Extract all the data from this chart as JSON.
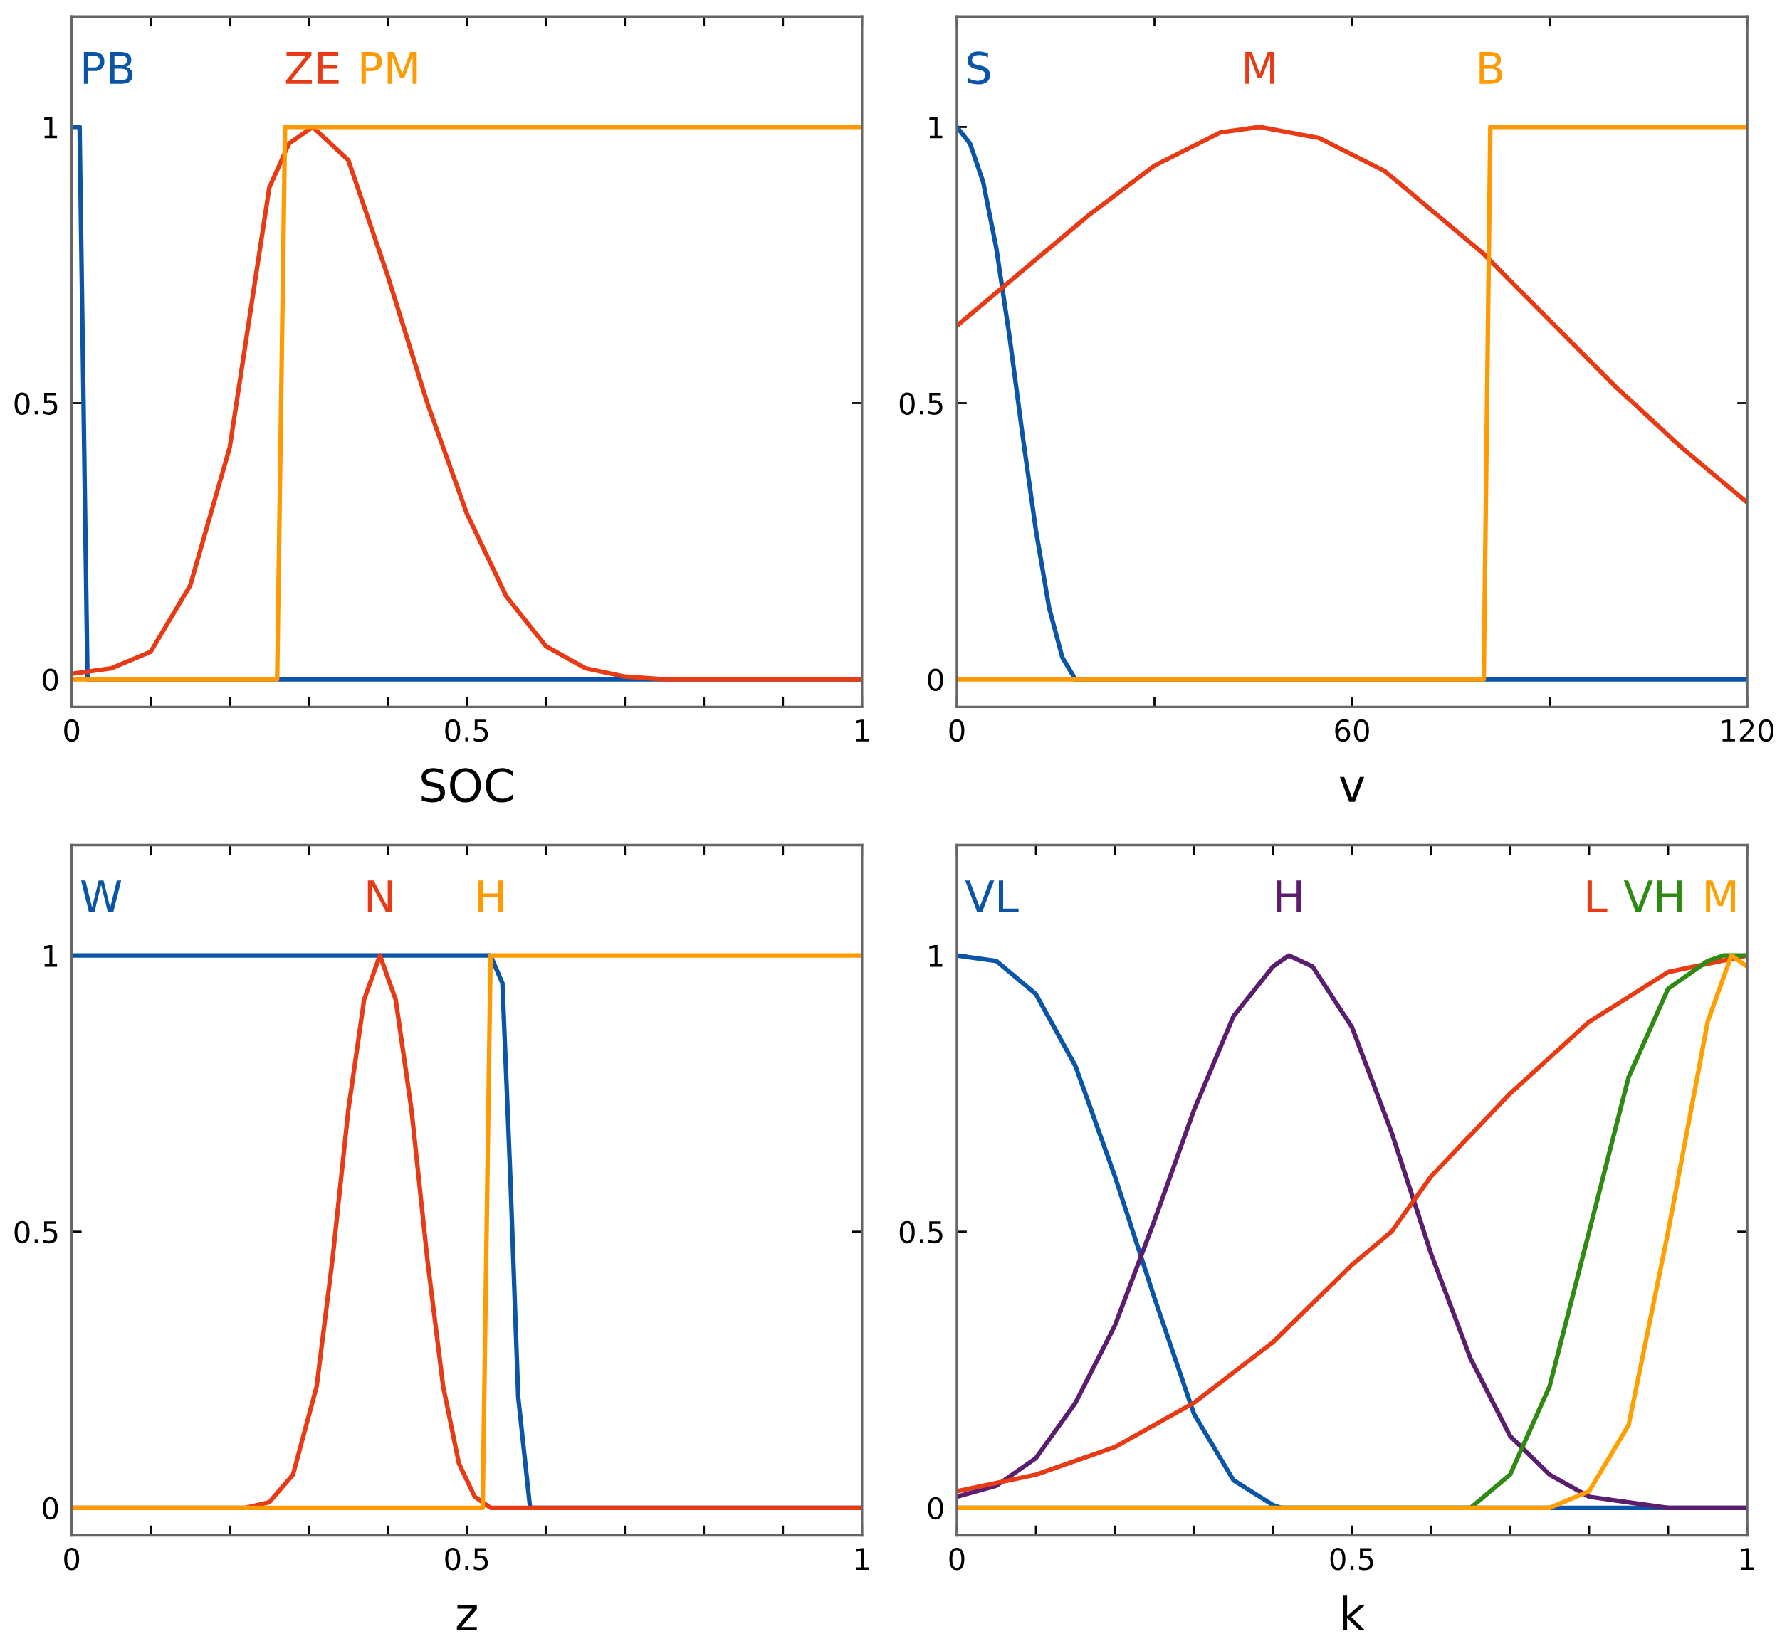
{
  "chart_data": [
    {
      "type": "line",
      "xlabel": "SOC",
      "xlim": [
        0,
        1
      ],
      "ylim": [
        -0.05,
        1.2
      ],
      "xticks": [
        0,
        {
          "value": 0.1,
          "label": null
        },
        {
          "value": 0.2,
          "label": null
        },
        {
          "value": 0.3,
          "label": null
        },
        {
          "value": 0.4,
          "label": null
        },
        0.5,
        {
          "value": 0.6,
          "label": null
        },
        {
          "value": 0.7,
          "label": null
        },
        {
          "value": 0.8,
          "label": null
        },
        {
          "value": 0.9,
          "label": null
        },
        1
      ],
      "yticks": [
        0,
        0.5,
        1
      ],
      "series": [
        {
          "name": "PB",
          "color": "#0a55a8",
          "x": [
            0,
            0.01,
            0.02,
            1
          ],
          "values": [
            1,
            1,
            0,
            0
          ]
        },
        {
          "name": "ZE",
          "color": "#e83a14",
          "x": [
            0,
            0.05,
            0.1,
            0.15,
            0.2,
            0.25,
            0.275,
            0.305,
            0.35,
            0.4,
            0.45,
            0.5,
            0.55,
            0.6,
            0.65,
            0.7,
            0.75,
            1
          ],
          "values": [
            0.01,
            0.02,
            0.05,
            0.17,
            0.42,
            0.89,
            0.97,
            1,
            0.94,
            0.73,
            0.5,
            0.3,
            0.15,
            0.06,
            0.02,
            0.005,
            0,
            0
          ]
        },
        {
          "name": "PM",
          "color": "#ff9a00",
          "x": [
            0,
            0.26,
            0.27,
            1
          ],
          "values": [
            0,
            0,
            1,
            1
          ]
        }
      ]
    },
    {
      "type": "line",
      "xlabel": "v",
      "xlim": [
        0,
        120
      ],
      "ylim": [
        -0.05,
        1.2
      ],
      "xticks": [
        0,
        {
          "value": 30,
          "label": null
        },
        60,
        {
          "value": 90,
          "label": null
        },
        120
      ],
      "yticks": [
        0,
        0.5,
        1
      ],
      "series": [
        {
          "name": "S",
          "color": "#0a55a8",
          "x": [
            0,
            2,
            4,
            6,
            8,
            10,
            12,
            14,
            16,
            18,
            120
          ],
          "values": [
            1,
            0.97,
            0.9,
            0.78,
            0.62,
            0.44,
            0.27,
            0.13,
            0.04,
            0,
            0
          ]
        },
        {
          "name": "M",
          "color": "#e83a14",
          "x": [
            0,
            10,
            20,
            30,
            40,
            46,
            55,
            65,
            75,
            80,
            90,
            100,
            110,
            120
          ],
          "values": [
            0.64,
            0.74,
            0.84,
            0.93,
            0.99,
            1,
            0.98,
            0.92,
            0.82,
            0.77,
            0.65,
            0.53,
            0.42,
            0.32
          ]
        },
        {
          "name": "B",
          "color": "#ff9a00",
          "x": [
            0,
            80,
            81,
            120
          ],
          "values": [
            0,
            0,
            1,
            1
          ]
        }
      ]
    },
    {
      "type": "line",
      "xlabel": "z",
      "xlim": [
        0,
        1
      ],
      "ylim": [
        -0.05,
        1.2
      ],
      "xticks": [
        0,
        {
          "value": 0.1,
          "label": null
        },
        {
          "value": 0.2,
          "label": null
        },
        {
          "value": 0.3,
          "label": null
        },
        {
          "value": 0.4,
          "label": null
        },
        0.5,
        {
          "value": 0.6,
          "label": null
        },
        {
          "value": 0.7,
          "label": null
        },
        {
          "value": 0.8,
          "label": null
        },
        {
          "value": 0.9,
          "label": null
        },
        1
      ],
      "yticks": [
        0,
        0.5,
        1
      ],
      "series": [
        {
          "name": "W",
          "color": "#0a55a8",
          "x": [
            0,
            0.53,
            0.545,
            0.555,
            0.565,
            0.58,
            1
          ],
          "values": [
            1,
            1,
            0.95,
            0.6,
            0.2,
            0,
            0
          ]
        },
        {
          "name": "N",
          "color": "#e83a14",
          "x": [
            0,
            0.22,
            0.25,
            0.28,
            0.31,
            0.33,
            0.35,
            0.37,
            0.39,
            0.41,
            0.43,
            0.45,
            0.47,
            0.49,
            0.51,
            0.53,
            1
          ],
          "values": [
            0,
            0,
            0.01,
            0.06,
            0.22,
            0.45,
            0.72,
            0.92,
            1,
            0.92,
            0.72,
            0.45,
            0.22,
            0.08,
            0.02,
            0,
            0
          ]
        },
        {
          "name": "H",
          "color": "#ff9a00",
          "x": [
            0,
            0.52,
            0.53,
            1
          ],
          "values": [
            0,
            0,
            1,
            1
          ]
        }
      ]
    },
    {
      "type": "line",
      "xlabel": "k",
      "xlim": [
        0,
        1
      ],
      "ylim": [
        -0.05,
        1.2
      ],
      "xticks": [
        0,
        {
          "value": 0.1,
          "label": null
        },
        {
          "value": 0.2,
          "label": null
        },
        {
          "value": 0.3,
          "label": null
        },
        {
          "value": 0.4,
          "label": null
        },
        0.5,
        {
          "value": 0.6,
          "label": null
        },
        {
          "value": 0.7,
          "label": null
        },
        {
          "value": 0.8,
          "label": null
        },
        {
          "value": 0.9,
          "label": null
        },
        1
      ],
      "yticks": [
        0,
        0.5,
        1
      ],
      "series": [
        {
          "name": "VL",
          "color": "#0a55a8",
          "x": [
            0,
            0.05,
            0.1,
            0.15,
            0.2,
            0.25,
            0.3,
            0.35,
            0.4,
            0.41,
            1
          ],
          "values": [
            1,
            0.99,
            0.93,
            0.8,
            0.6,
            0.38,
            0.17,
            0.05,
            0.005,
            0,
            0
          ]
        },
        {
          "name": "H",
          "color": "#5b1e6e",
          "x": [
            0,
            0.05,
            0.1,
            0.15,
            0.2,
            0.25,
            0.3,
            0.35,
            0.4,
            0.42,
            0.45,
            0.5,
            0.55,
            0.6,
            0.65,
            0.7,
            0.75,
            0.8,
            0.85,
            0.9,
            1
          ],
          "values": [
            0.02,
            0.04,
            0.09,
            0.19,
            0.33,
            0.52,
            0.72,
            0.89,
            0.98,
            1,
            0.98,
            0.87,
            0.68,
            0.46,
            0.27,
            0.13,
            0.06,
            0.02,
            0.01,
            0,
            0
          ]
        },
        {
          "name": "L",
          "color": "#e83a14",
          "x": [
            0,
            0.1,
            0.2,
            0.3,
            0.4,
            0.5,
            0.55,
            0.6,
            0.7,
            0.8,
            0.9,
            1
          ],
          "values": [
            0.03,
            0.06,
            0.11,
            0.19,
            0.3,
            0.44,
            0.5,
            0.6,
            0.75,
            0.88,
            0.97,
            1
          ]
        },
        {
          "name": "VH",
          "color": "#2e8a12",
          "x": [
            0,
            0.65,
            0.7,
            0.75,
            0.8,
            0.85,
            0.9,
            0.95,
            0.97,
            1
          ],
          "values": [
            0,
            0,
            0.06,
            0.22,
            0.5,
            0.78,
            0.94,
            0.99,
            1,
            1
          ]
        },
        {
          "name": "M",
          "color": "#ffa000",
          "x": [
            0,
            0.75,
            0.8,
            0.85,
            0.9,
            0.95,
            0.98,
            1
          ],
          "values": [
            0,
            0,
            0.03,
            0.15,
            0.5,
            0.88,
            1,
            0.98
          ]
        }
      ]
    }
  ]
}
